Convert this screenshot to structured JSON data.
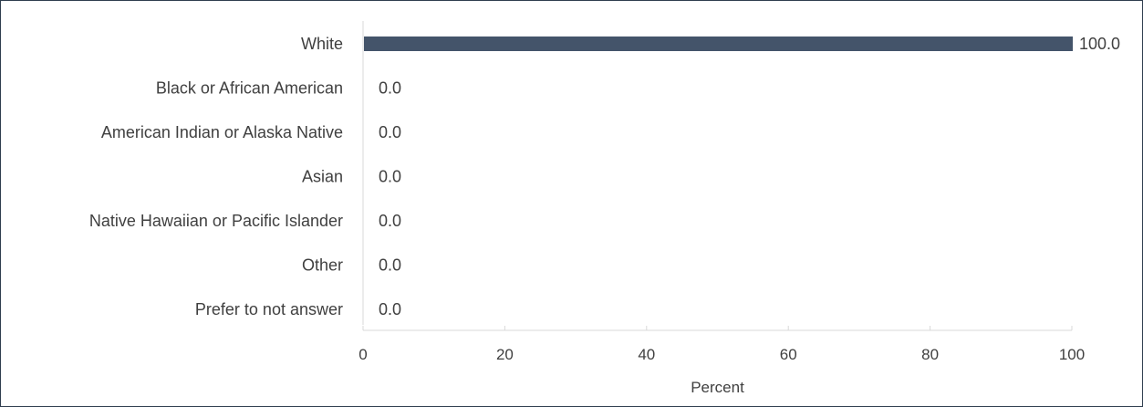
{
  "chart_data": {
    "type": "bar",
    "orientation": "horizontal",
    "categories": [
      "White",
      "Black or African American",
      "American Indian or Alaska Native",
      "Asian",
      "Native Hawaiian or Pacific Islander",
      "Other",
      "Prefer to not answer"
    ],
    "values": [
      100.0,
      0.0,
      0.0,
      0.0,
      0.0,
      0.0,
      0.0
    ],
    "data_labels": [
      "100.0",
      "0.0",
      "0.0",
      "0.0",
      "0.0",
      "0.0",
      "0.0"
    ],
    "x_ticks": [
      "0",
      "20",
      "40",
      "60",
      "80",
      "100"
    ],
    "xlim": [
      0,
      100
    ],
    "xlabel": "Percent",
    "ylabel": "",
    "title": "",
    "grid": false,
    "legend": "none",
    "colors": {
      "bar": "#44546a",
      "axis": "#d9d9d9",
      "text": "#404040",
      "border": "#2f3e4e"
    }
  }
}
